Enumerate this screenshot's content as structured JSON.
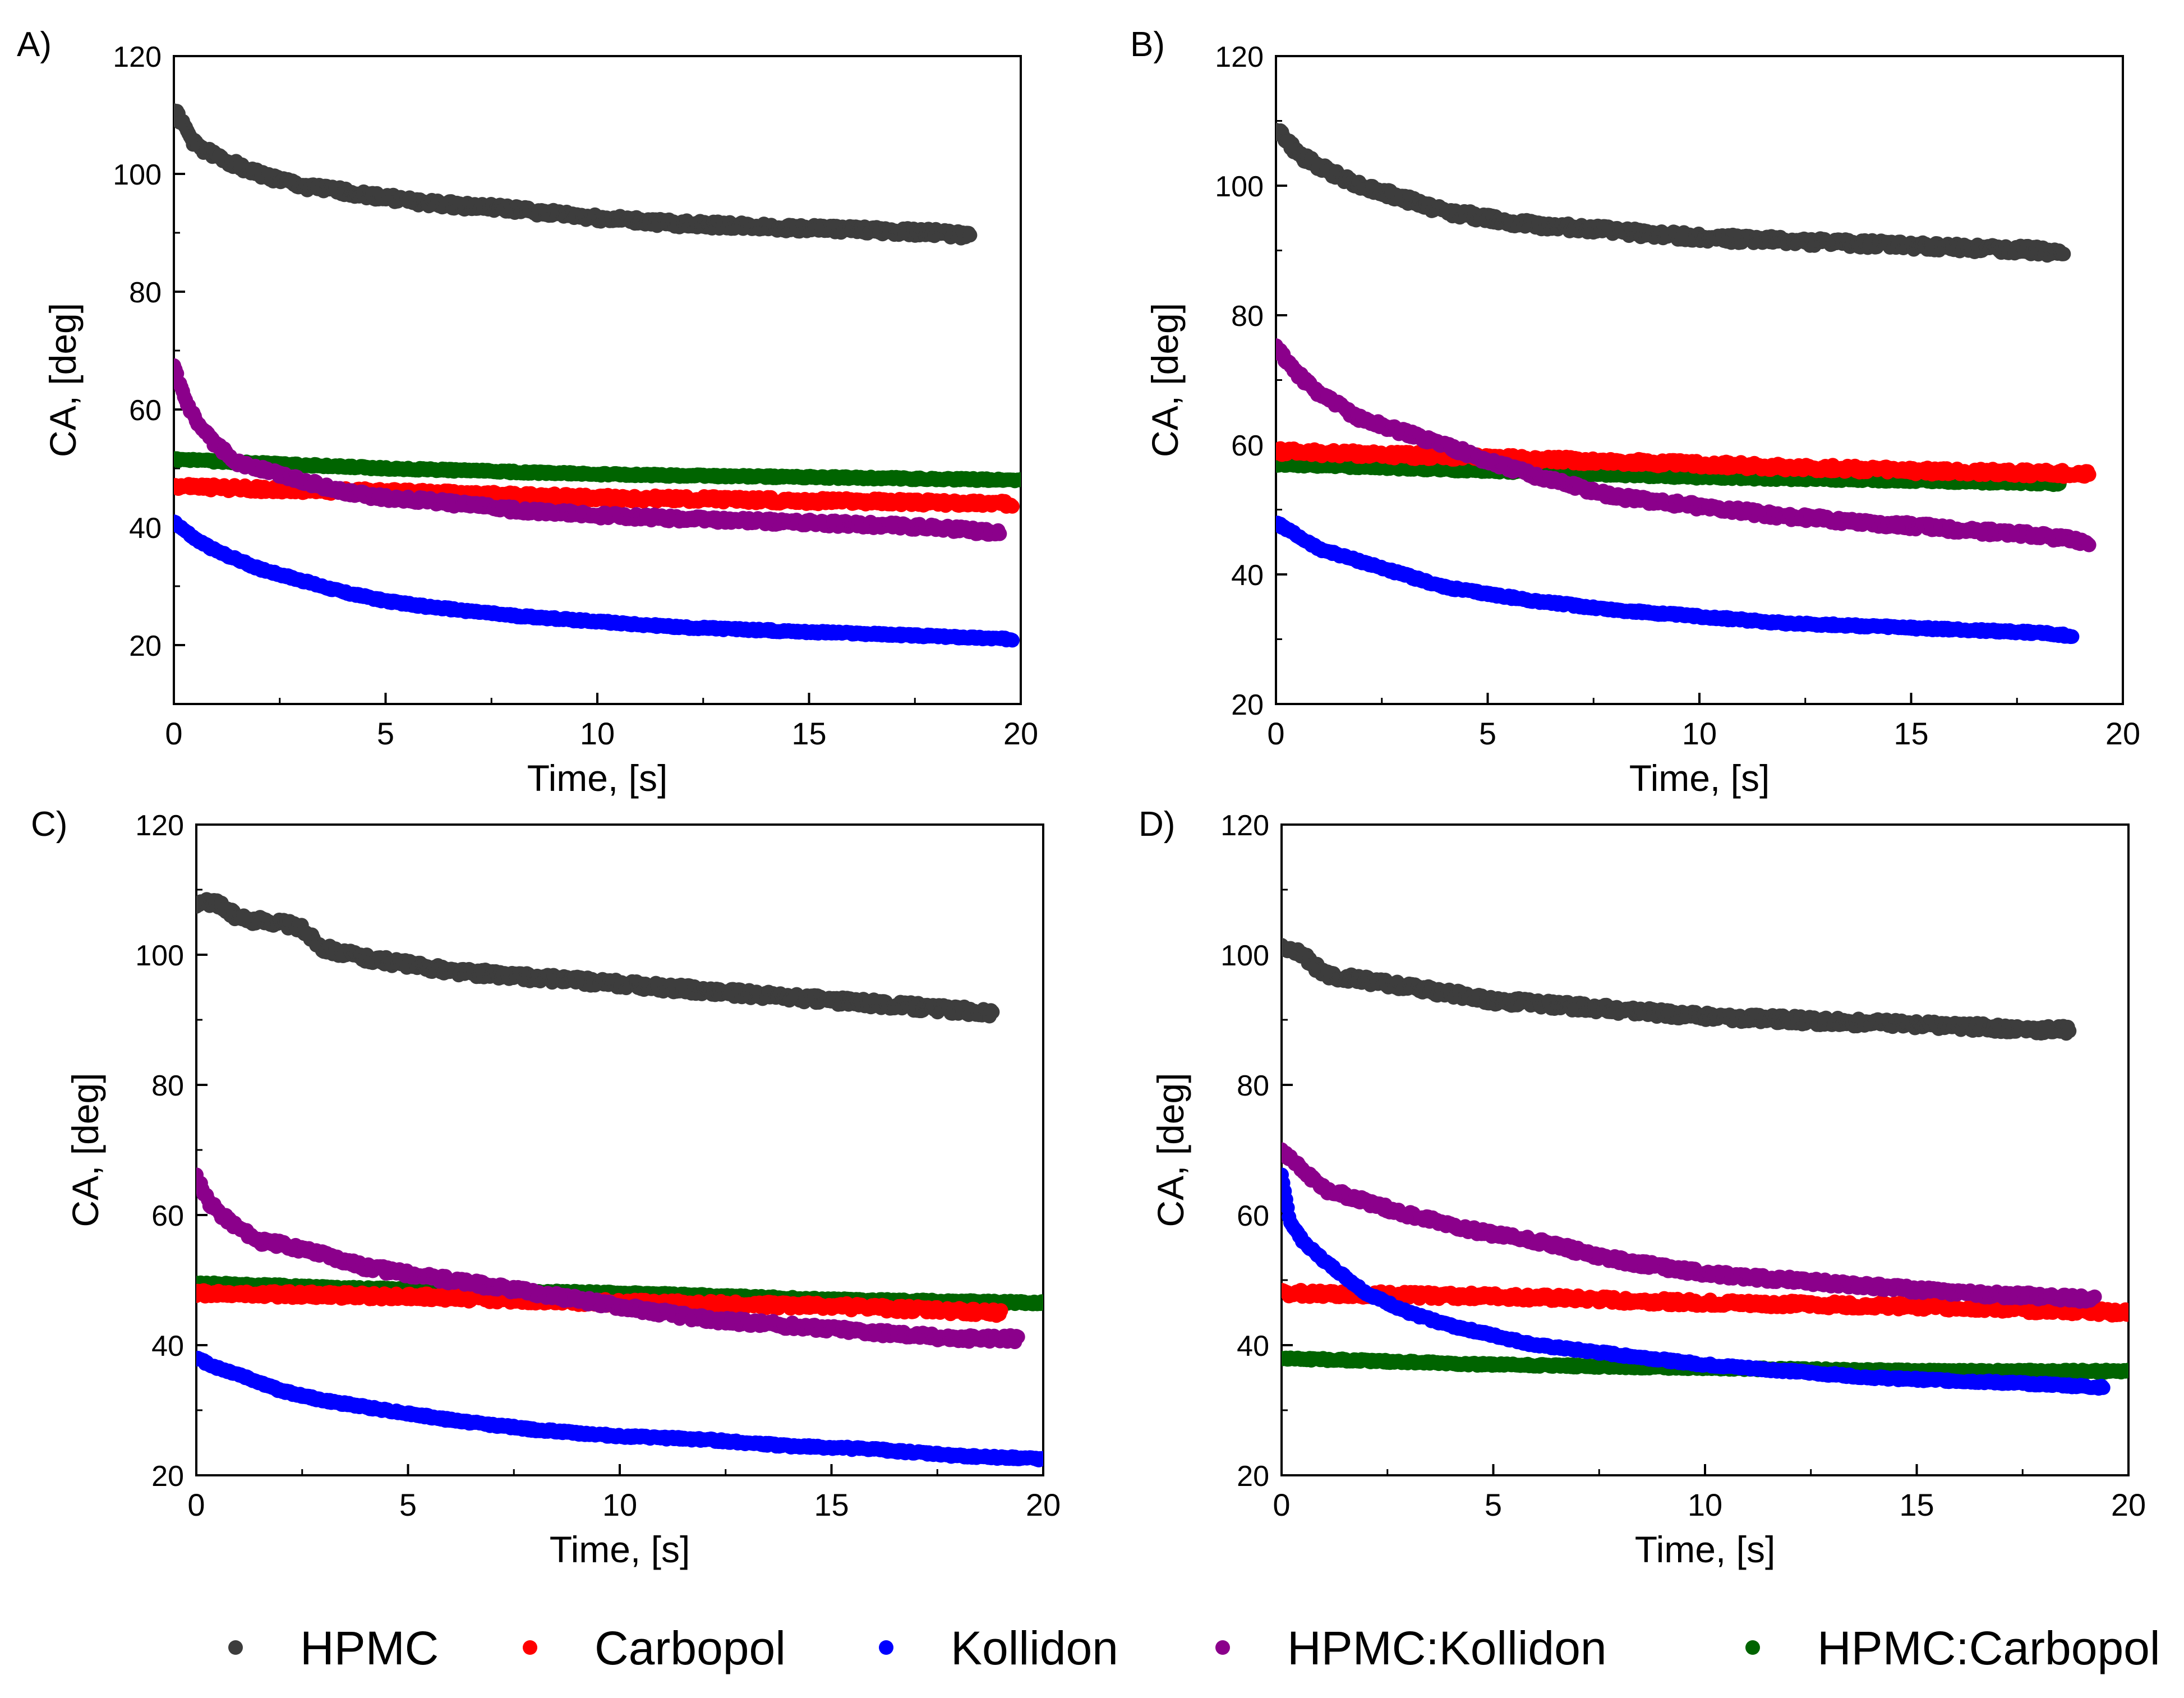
{
  "colors": {
    "HPMC": "#3d3d3d",
    "Carbopol": "#ff0000",
    "Kollidon": "#0000ff",
    "HPMC:Kollidon": "#8b008b",
    "HPMC:Carbopol": "#006400"
  },
  "legend": {
    "items": [
      "HPMC",
      "Carbopol",
      "Kollidon",
      "HPMC:Kollidon",
      "HPMC:Carbopol"
    ]
  },
  "chart_data": [
    {
      "type": "scatter",
      "panel_label": "A)",
      "xlabel": "Time, [s]",
      "ylabel": "CA, [deg]",
      "xlim": [
        0,
        20
      ],
      "ylim": [
        10,
        120
      ],
      "xticks": [
        0,
        5,
        10,
        15,
        20
      ],
      "yticks": [
        20,
        40,
        60,
        80,
        100,
        120
      ],
      "series": [
        {
          "name": "HPMC",
          "x": [
            0,
            0.5,
            1,
            2,
            3,
            4,
            5,
            6,
            8,
            10,
            12,
            14,
            16,
            18,
            18.8
          ],
          "y": [
            111,
            105,
            103,
            100,
            98,
            97,
            96,
            95,
            94,
            92.5,
            91.5,
            91,
            90.5,
            90,
            89.5
          ]
        },
        {
          "name": "Carbopol",
          "x": [
            0,
            2,
            5,
            10,
            15,
            19.8
          ],
          "y": [
            47,
            46.5,
            46,
            45,
            44.5,
            44
          ]
        },
        {
          "name": "Kollidon",
          "x": [
            0,
            0.5,
            1,
            2,
            3,
            4,
            5,
            6,
            8,
            10,
            12,
            14,
            16,
            18,
            19.8
          ],
          "y": [
            41,
            38,
            36,
            33,
            31,
            29,
            27.5,
            26.5,
            25,
            24,
            23,
            22.5,
            22,
            21.5,
            21
          ]
        },
        {
          "name": "HPMC:Kollidon",
          "x": [
            0,
            0.3,
            0.6,
            1,
            1.5,
            2,
            3,
            4,
            5,
            6,
            8,
            10,
            12,
            14,
            16,
            18,
            19.5
          ],
          "y": [
            67,
            61,
            57,
            54,
            51,
            50,
            48,
            46,
            45,
            44.5,
            43,
            42,
            41.5,
            41,
            40.5,
            40,
            39
          ]
        },
        {
          "name": "HPMC:Carbopol",
          "x": [
            0,
            5,
            10,
            15,
            20
          ],
          "y": [
            51.5,
            50,
            49,
            48.5,
            48
          ]
        }
      ]
    },
    {
      "type": "scatter",
      "panel_label": "B)",
      "xlabel": "Time, [s]",
      "ylabel": "CA, [deg]",
      "xlim": [
        0,
        20
      ],
      "ylim": [
        20,
        120
      ],
      "xticks": [
        0,
        5,
        10,
        15,
        20
      ],
      "yticks": [
        20,
        40,
        60,
        80,
        100,
        120
      ],
      "series": [
        {
          "name": "HPMC",
          "x": [
            0,
            0.5,
            1,
            2,
            3,
            4,
            5,
            6,
            8,
            10,
            12,
            14,
            16,
            18,
            18.6
          ],
          "y": [
            109,
            105,
            103,
            100,
            98,
            96,
            95,
            94,
            93,
            92,
            91.5,
            91,
            90.5,
            90,
            89.5
          ]
        },
        {
          "name": "Carbopol",
          "x": [
            0,
            5,
            10,
            15,
            19.2
          ],
          "y": [
            59,
            58,
            57,
            56,
            55.5
          ]
        },
        {
          "name": "Kollidon",
          "x": [
            0,
            0.5,
            1,
            2,
            3,
            4,
            5,
            6,
            8,
            10,
            12,
            14,
            16,
            18,
            18.8
          ],
          "y": [
            48,
            46,
            44,
            42,
            40,
            38,
            37,
            36,
            34.5,
            33.5,
            32.5,
            32,
            31.5,
            31,
            30.5
          ]
        },
        {
          "name": "HPMC:Kollidon",
          "x": [
            0,
            0.5,
            1,
            1.5,
            2,
            3,
            4,
            5,
            6,
            8,
            10,
            12,
            14,
            16,
            18,
            19.2
          ],
          "y": [
            75,
            71,
            68,
            66,
            64,
            62,
            60,
            57.5,
            55.5,
            52,
            50.5,
            49,
            48,
            47,
            46,
            45
          ]
        },
        {
          "name": "HPMC:Carbopol",
          "x": [
            0,
            5,
            10,
            15,
            18.5
          ],
          "y": [
            57,
            56,
            55,
            54.5,
            54
          ]
        }
      ]
    },
    {
      "type": "scatter",
      "panel_label": "C)",
      "xlabel": "Time, [s]",
      "ylabel": "CA, [deg]",
      "xlim": [
        0,
        20
      ],
      "ylim": [
        20,
        120
      ],
      "xticks": [
        0,
        5,
        10,
        15,
        20
      ],
      "yticks": [
        20,
        40,
        60,
        80,
        100,
        120
      ],
      "series": [
        {
          "name": "HPMC",
          "x": [
            0,
            0.5,
            1,
            2,
            2.5,
            3,
            4,
            5,
            6,
            8,
            10,
            12,
            14,
            16,
            18,
            18.8
          ],
          "y": [
            108,
            108,
            105.5,
            105,
            104,
            101,
            99.5,
            98.5,
            97.5,
            96.5,
            95.5,
            94.5,
            93.5,
            92.5,
            91.5,
            91
          ]
        },
        {
          "name": "Carbopol",
          "x": [
            0,
            5,
            10,
            15,
            19
          ],
          "y": [
            48,
            47.5,
            46.5,
            46,
            45
          ]
        },
        {
          "name": "Kollidon",
          "x": [
            0,
            0.5,
            1,
            2,
            3,
            4,
            5,
            6,
            8,
            10,
            12,
            14,
            16,
            18,
            20
          ],
          "y": [
            38,
            36.5,
            35.5,
            33,
            31.5,
            30.5,
            29.5,
            28.5,
            27,
            26,
            25.5,
            24.5,
            24,
            23,
            22.5
          ]
        },
        {
          "name": "HPMC:Kollidon",
          "x": [
            0,
            0.3,
            0.6,
            1,
            1.5,
            2,
            3,
            4,
            5,
            6,
            8,
            10,
            12,
            14,
            16,
            18,
            19.4
          ],
          "y": [
            66,
            62,
            60,
            58,
            56,
            55.5,
            54,
            52,
            51,
            50,
            48,
            46,
            44,
            43,
            42,
            41,
            41
          ]
        },
        {
          "name": "HPMC:Carbopol",
          "x": [
            0,
            5,
            10,
            15,
            20
          ],
          "y": [
            49.5,
            48.5,
            48,
            47,
            46.5
          ]
        }
      ]
    },
    {
      "type": "scatter",
      "panel_label": "D)",
      "xlabel": "Time, [s]",
      "ylabel": "CA, [deg]",
      "xlim": [
        0,
        20
      ],
      "ylim": [
        20,
        120
      ],
      "xticks": [
        0,
        5,
        10,
        15,
        20
      ],
      "yticks": [
        20,
        40,
        60,
        80,
        100,
        120
      ],
      "series": [
        {
          "name": "HPMC",
          "x": [
            0,
            0.5,
            1,
            2,
            3,
            4,
            5,
            6,
            8,
            10,
            12,
            14,
            16,
            18,
            18.6
          ],
          "y": [
            101,
            100,
            97,
            96,
            95,
            94,
            93,
            92.5,
            91.5,
            90.5,
            90,
            89.5,
            89,
            88.5,
            88.5
          ]
        },
        {
          "name": "Carbopol",
          "x": [
            0,
            5,
            10,
            15,
            20
          ],
          "y": [
            48,
            47.5,
            46.5,
            46,
            45
          ]
        },
        {
          "name": "Kollidon",
          "x": [
            0,
            0.2,
            0.5,
            1,
            2,
            3,
            4,
            5,
            6,
            8,
            10,
            12,
            14,
            16,
            18,
            19.4
          ],
          "y": [
            66,
            59,
            56,
            53,
            48,
            45,
            43,
            41.5,
            40,
            38.5,
            37,
            36,
            35,
            34.5,
            34,
            33.5
          ]
        },
        {
          "name": "HPMC:Kollidon",
          "x": [
            0,
            0.5,
            1,
            2,
            3,
            4,
            5,
            6,
            8,
            10,
            12,
            14,
            16,
            18,
            19.2
          ],
          "y": [
            70,
            67,
            64,
            62,
            60,
            58.5,
            57,
            56,
            53,
            51,
            50,
            49,
            48,
            47.5,
            47
          ]
        },
        {
          "name": "HPMC:Carbopol",
          "x": [
            0,
            5,
            10,
            15,
            20
          ],
          "y": [
            38,
            37,
            36.5,
            36,
            36
          ]
        }
      ]
    }
  ]
}
